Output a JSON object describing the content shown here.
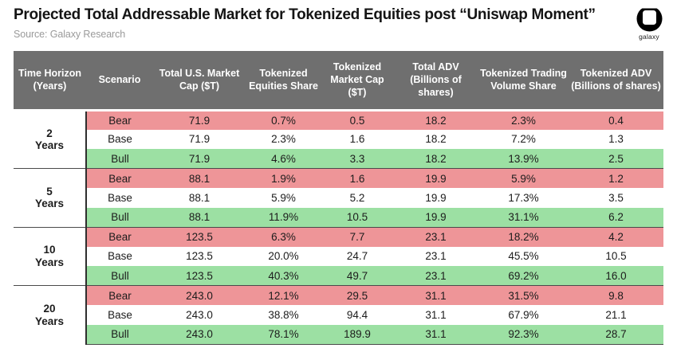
{
  "chart_data": {
    "type": "table",
    "title": "Projected Total Addressable Market for Tokenized Equities post “Uniswap Moment”",
    "source": "Source: Galaxy Research",
    "columns": [
      "Time Horizon (Years)",
      "Scenario",
      "Total U.S. Market Cap ($T)",
      "Tokenized Equities Share",
      "Tokenized Market Cap ($T)",
      "Total ADV (Billions of shares)",
      "Tokenized Trading Volume Share",
      "Tokenized ADV (Billions of shares)"
    ],
    "groups": [
      {
        "horizon": "2 Years",
        "rows": [
          {
            "scenario": "Bear",
            "values": [
              "71.9",
              "0.7%",
              "0.5",
              "18.2",
              "2.3%",
              "0.4"
            ]
          },
          {
            "scenario": "Base",
            "values": [
              "71.9",
              "2.3%",
              "1.6",
              "18.2",
              "7.2%",
              "1.3"
            ]
          },
          {
            "scenario": "Bull",
            "values": [
              "71.9",
              "4.6%",
              "3.3",
              "18.2",
              "13.9%",
              "2.5"
            ]
          }
        ]
      },
      {
        "horizon": "5 Years",
        "rows": [
          {
            "scenario": "Bear",
            "values": [
              "88.1",
              "1.9%",
              "1.6",
              "19.9",
              "5.9%",
              "1.2"
            ]
          },
          {
            "scenario": "Base",
            "values": [
              "88.1",
              "5.9%",
              "5.2",
              "19.9",
              "17.3%",
              "3.5"
            ]
          },
          {
            "scenario": "Bull",
            "values": [
              "88.1",
              "11.9%",
              "10.5",
              "19.9",
              "31.1%",
              "6.2"
            ]
          }
        ]
      },
      {
        "horizon": "10 Years",
        "rows": [
          {
            "scenario": "Bear",
            "values": [
              "123.5",
              "6.3%",
              "7.7",
              "23.1",
              "18.2%",
              "4.2"
            ]
          },
          {
            "scenario": "Base",
            "values": [
              "123.5",
              "20.0%",
              "24.7",
              "23.1",
              "45.5%",
              "10.5"
            ]
          },
          {
            "scenario": "Bull",
            "values": [
              "123.5",
              "40.3%",
              "49.7",
              "23.1",
              "69.2%",
              "16.0"
            ]
          }
        ]
      },
      {
        "horizon": "20 Years",
        "rows": [
          {
            "scenario": "Bear",
            "values": [
              "243.0",
              "12.1%",
              "29.5",
              "31.1",
              "31.5%",
              "9.8"
            ]
          },
          {
            "scenario": "Base",
            "values": [
              "243.0",
              "38.8%",
              "94.4",
              "31.1",
              "67.9%",
              "21.1"
            ]
          },
          {
            "scenario": "Bull",
            "values": [
              "243.0",
              "78.1%",
              "189.9",
              "31.1",
              "92.3%",
              "28.7"
            ]
          }
        ]
      }
    ],
    "legend": {
      "bear_row_color_meaning": "Bear scenario",
      "base_row_color_meaning": "Base scenario",
      "bull_row_color_meaning": "Bull scenario"
    }
  },
  "branding": {
    "wordmark": "galaxy"
  },
  "colors": {
    "header_bg": "#6f6f6f",
    "bear_row": "#ee9598",
    "base_row": "#ffffff",
    "bull_row": "#9ce0a3",
    "separator": "#4a4a4a",
    "title_text": "#141414",
    "source_text": "#9a9a9a"
  }
}
